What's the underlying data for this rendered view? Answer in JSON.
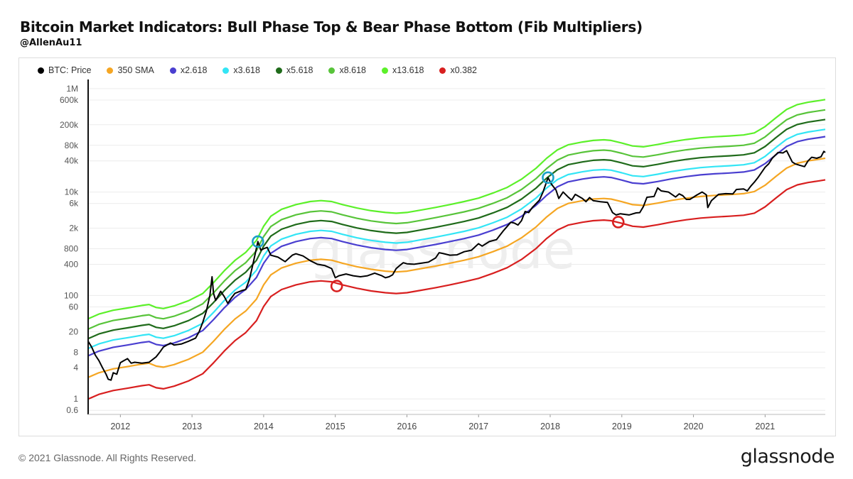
{
  "header": {
    "title": "Bitcoin Market Indicators: Bull Phase Top & Bear Phase Bottom (Fib Multipliers)",
    "subtitle": "@AllenAu11"
  },
  "footer": {
    "copyright": "© 2021 Glassnode. All Rights Reserved.",
    "logo": "glassnode"
  },
  "watermark": "glassnode",
  "colors": {
    "price": "#000000",
    "sma": "#f5a623",
    "x2618": "#4a3fd0",
    "x3618": "#33e5f5",
    "x5618": "#1f6b1a",
    "x8618": "#58c43a",
    "x13618": "#5cf02a",
    "x0382": "#d81f1f",
    "top_marker": "#1aa0c8",
    "bottom_marker": "#d81f1f"
  },
  "chart_data": {
    "type": "line",
    "title": "Bitcoin Market Indicators: Bull Phase Top & Bear Phase Bottom (Fib Multipliers)",
    "y_scale": "log",
    "ylim": [
      0.5,
      1500000
    ],
    "xlim": [
      2011.55,
      2021.84
    ],
    "y_ticks": [
      {
        "value": 0.6,
        "label": "0.6"
      },
      {
        "value": 1,
        "label": "1"
      },
      {
        "value": 4,
        "label": "4"
      },
      {
        "value": 8,
        "label": "8"
      },
      {
        "value": 20,
        "label": "20"
      },
      {
        "value": 60,
        "label": "60"
      },
      {
        "value": 100,
        "label": "100"
      },
      {
        "value": 400,
        "label": "400"
      },
      {
        "value": 800,
        "label": "800"
      },
      {
        "value": 2000,
        "label": "2k"
      },
      {
        "value": 6000,
        "label": "6k"
      },
      {
        "value": 10000,
        "label": "10k"
      },
      {
        "value": 40000,
        "label": "40k"
      },
      {
        "value": 80000,
        "label": "80k"
      },
      {
        "value": 200000,
        "label": "200k"
      },
      {
        "value": 600000,
        "label": "600k"
      },
      {
        "value": 1000000,
        "label": "1M"
      }
    ],
    "x_ticks": [
      {
        "value": 2012,
        "label": "2012"
      },
      {
        "value": 2013,
        "label": "2013"
      },
      {
        "value": 2014,
        "label": "2014"
      },
      {
        "value": 2015,
        "label": "2015"
      },
      {
        "value": 2016,
        "label": "2016"
      },
      {
        "value": 2017,
        "label": "2017"
      },
      {
        "value": 2018,
        "label": "2018"
      },
      {
        "value": 2019,
        "label": "2019"
      },
      {
        "value": 2020,
        "label": "2020"
      },
      {
        "value": 2021,
        "label": "2021"
      }
    ],
    "legend": [
      {
        "key": "price",
        "label": "BTC: Price"
      },
      {
        "key": "sma",
        "label": "350 SMA"
      },
      {
        "key": "x2618",
        "label": "x2.618"
      },
      {
        "key": "x3618",
        "label": "x3.618"
      },
      {
        "key": "x5618",
        "label": "x5.618"
      },
      {
        "key": "x8618",
        "label": "x8.618"
      },
      {
        "key": "x13618",
        "label": "x13.618"
      },
      {
        "key": "x0382",
        "label": "x0.382"
      }
    ],
    "multipliers": {
      "x2618": 2.618,
      "x3618": 3.618,
      "x5618": 5.618,
      "x8618": 8.618,
      "x13618": 13.618,
      "x0382": 0.382
    },
    "sma_series": [
      [
        2011.55,
        2.6
      ],
      [
        2011.7,
        3.2
      ],
      [
        2011.9,
        3.8
      ],
      [
        2012.1,
        4.2
      ],
      [
        2012.3,
        4.7
      ],
      [
        2012.4,
        4.9
      ],
      [
        2012.5,
        4.3
      ],
      [
        2012.6,
        4.1
      ],
      [
        2012.75,
        4.6
      ],
      [
        2012.95,
        5.8
      ],
      [
        2013.15,
        8
      ],
      [
        2013.3,
        13
      ],
      [
        2013.45,
        22
      ],
      [
        2013.6,
        35
      ],
      [
        2013.75,
        50
      ],
      [
        2013.9,
        85
      ],
      [
        2014.0,
        160
      ],
      [
        2014.1,
        250
      ],
      [
        2014.25,
        340
      ],
      [
        2014.45,
        420
      ],
      [
        2014.65,
        480
      ],
      [
        2014.8,
        500
      ],
      [
        2014.95,
        480
      ],
      [
        2015.1,
        420
      ],
      [
        2015.3,
        360
      ],
      [
        2015.5,
        320
      ],
      [
        2015.7,
        295
      ],
      [
        2015.85,
        285
      ],
      [
        2016.0,
        295
      ],
      [
        2016.2,
        330
      ],
      [
        2016.4,
        370
      ],
      [
        2016.6,
        420
      ],
      [
        2016.8,
        480
      ],
      [
        2017.0,
        560
      ],
      [
        2017.2,
        700
      ],
      [
        2017.4,
        900
      ],
      [
        2017.6,
        1300
      ],
      [
        2017.8,
        2100
      ],
      [
        2017.95,
        3300
      ],
      [
        2018.1,
        4800
      ],
      [
        2018.25,
        6000
      ],
      [
        2018.45,
        6800
      ],
      [
        2018.6,
        7300
      ],
      [
        2018.75,
        7500
      ],
      [
        2018.85,
        7300
      ],
      [
        2019.0,
        6500
      ],
      [
        2019.15,
        5700
      ],
      [
        2019.3,
        5500
      ],
      [
        2019.5,
        6100
      ],
      [
        2019.7,
        6900
      ],
      [
        2019.9,
        7600
      ],
      [
        2020.1,
        8200
      ],
      [
        2020.3,
        8600
      ],
      [
        2020.5,
        8900
      ],
      [
        2020.7,
        9300
      ],
      [
        2020.85,
        10200
      ],
      [
        2021.0,
        13500
      ],
      [
        2021.15,
        20000
      ],
      [
        2021.3,
        29000
      ],
      [
        2021.45,
        36000
      ],
      [
        2021.6,
        40000
      ],
      [
        2021.75,
        43000
      ],
      [
        2021.84,
        45000
      ]
    ],
    "price_series": [
      [
        2011.55,
        13
      ],
      [
        2011.6,
        10
      ],
      [
        2011.65,
        7
      ],
      [
        2011.7,
        5.5
      ],
      [
        2011.75,
        4
      ],
      [
        2011.8,
        3
      ],
      [
        2011.83,
        2.4
      ],
      [
        2011.87,
        2.3
      ],
      [
        2011.9,
        3.2
      ],
      [
        2011.95,
        3
      ],
      [
        2012.0,
        5
      ],
      [
        2012.05,
        5.5
      ],
      [
        2012.1,
        6
      ],
      [
        2012.15,
        4.9
      ],
      [
        2012.2,
        5.1
      ],
      [
        2012.3,
        4.9
      ],
      [
        2012.4,
        5.1
      ],
      [
        2012.5,
        6.5
      ],
      [
        2012.55,
        8
      ],
      [
        2012.6,
        10
      ],
      [
        2012.65,
        11
      ],
      [
        2012.7,
        12
      ],
      [
        2012.75,
        11
      ],
      [
        2012.85,
        11.5
      ],
      [
        2012.95,
        13
      ],
      [
        2013.05,
        15
      ],
      [
        2013.1,
        20
      ],
      [
        2013.15,
        30
      ],
      [
        2013.2,
        50
      ],
      [
        2013.25,
        100
      ],
      [
        2013.28,
        230
      ],
      [
        2013.3,
        110
      ],
      [
        2013.33,
        80
      ],
      [
        2013.4,
        120
      ],
      [
        2013.45,
        95
      ],
      [
        2013.5,
        70
      ],
      [
        2013.55,
        90
      ],
      [
        2013.6,
        110
      ],
      [
        2013.7,
        125
      ],
      [
        2013.75,
        130
      ],
      [
        2013.8,
        200
      ],
      [
        2013.85,
        400
      ],
      [
        2013.92,
        1100
      ],
      [
        2013.96,
        750
      ],
      [
        2014.0,
        800
      ],
      [
        2014.05,
        850
      ],
      [
        2014.1,
        600
      ],
      [
        2014.2,
        550
      ],
      [
        2014.3,
        450
      ],
      [
        2014.4,
        600
      ],
      [
        2014.45,
        640
      ],
      [
        2014.55,
        580
      ],
      [
        2014.65,
        470
      ],
      [
        2014.75,
        400
      ],
      [
        2014.85,
        380
      ],
      [
        2014.95,
        330
      ],
      [
        2015.0,
        220
      ],
      [
        2015.05,
        240
      ],
      [
        2015.15,
        260
      ],
      [
        2015.25,
        240
      ],
      [
        2015.35,
        230
      ],
      [
        2015.45,
        240
      ],
      [
        2015.55,
        270
      ],
      [
        2015.65,
        240
      ],
      [
        2015.7,
        220
      ],
      [
        2015.75,
        230
      ],
      [
        2015.8,
        250
      ],
      [
        2015.85,
        330
      ],
      [
        2015.9,
        380
      ],
      [
        2015.95,
        430
      ],
      [
        2016.0,
        410
      ],
      [
        2016.1,
        400
      ],
      [
        2016.2,
        420
      ],
      [
        2016.3,
        440
      ],
      [
        2016.4,
        530
      ],
      [
        2016.45,
        670
      ],
      [
        2016.5,
        650
      ],
      [
        2016.6,
        600
      ],
      [
        2016.7,
        610
      ],
      [
        2016.8,
        700
      ],
      [
        2016.9,
        750
      ],
      [
        2017.0,
        1000
      ],
      [
        2017.05,
        900
      ],
      [
        2017.15,
        1100
      ],
      [
        2017.25,
        1200
      ],
      [
        2017.35,
        1800
      ],
      [
        2017.45,
        2600
      ],
      [
        2017.5,
        2500
      ],
      [
        2017.55,
        2300
      ],
      [
        2017.6,
        2800
      ],
      [
        2017.65,
        4200
      ],
      [
        2017.7,
        4000
      ],
      [
        2017.75,
        5000
      ],
      [
        2017.85,
        7000
      ],
      [
        2017.9,
        10000
      ],
      [
        2017.97,
        19000
      ],
      [
        2018.02,
        14000
      ],
      [
        2018.08,
        11000
      ],
      [
        2018.12,
        7500
      ],
      [
        2018.18,
        10000
      ],
      [
        2018.25,
        8000
      ],
      [
        2018.3,
        7000
      ],
      [
        2018.35,
        9000
      ],
      [
        2018.45,
        7500
      ],
      [
        2018.5,
        6500
      ],
      [
        2018.55,
        7800
      ],
      [
        2018.6,
        6800
      ],
      [
        2018.7,
        6500
      ],
      [
        2018.8,
        6300
      ],
      [
        2018.87,
        4000
      ],
      [
        2018.92,
        3600
      ],
      [
        2018.98,
        3800
      ],
      [
        2019.1,
        3600
      ],
      [
        2019.2,
        3950
      ],
      [
        2019.25,
        4000
      ],
      [
        2019.3,
        5200
      ],
      [
        2019.35,
        7900
      ],
      [
        2019.45,
        8200
      ],
      [
        2019.5,
        12000
      ],
      [
        2019.55,
        10500
      ],
      [
        2019.65,
        10000
      ],
      [
        2019.75,
        8000
      ],
      [
        2019.8,
        9200
      ],
      [
        2019.85,
        8500
      ],
      [
        2019.9,
        7200
      ],
      [
        2019.95,
        7200
      ],
      [
        2020.05,
        8800
      ],
      [
        2020.12,
        10000
      ],
      [
        2020.18,
        8800
      ],
      [
        2020.2,
        5000
      ],
      [
        2020.25,
        6800
      ],
      [
        2020.35,
        9000
      ],
      [
        2020.45,
        9300
      ],
      [
        2020.55,
        9200
      ],
      [
        2020.6,
        11200
      ],
      [
        2020.7,
        11500
      ],
      [
        2020.75,
        10500
      ],
      [
        2020.8,
        13000
      ],
      [
        2020.85,
        15500
      ],
      [
        2020.9,
        19000
      ],
      [
        2021.0,
        30000
      ],
      [
        2021.05,
        35000
      ],
      [
        2021.1,
        45000
      ],
      [
        2021.18,
        58000
      ],
      [
        2021.25,
        57000
      ],
      [
        2021.3,
        63000
      ],
      [
        2021.38,
        38000
      ],
      [
        2021.42,
        35000
      ],
      [
        2021.48,
        33000
      ],
      [
        2021.55,
        31000
      ],
      [
        2021.6,
        40000
      ],
      [
        2021.65,
        47000
      ],
      [
        2021.72,
        45000
      ],
      [
        2021.78,
        48000
      ],
      [
        2021.82,
        61000
      ],
      [
        2021.84,
        58000
      ]
    ],
    "markers": [
      {
        "type": "top",
        "x": 2013.92,
        "y": 1100
      },
      {
        "type": "top",
        "x": 2017.97,
        "y": 19000
      },
      {
        "type": "bottom",
        "x": 2015.02,
        "y": 152
      },
      {
        "type": "bottom",
        "x": 2018.95,
        "y": 2620
      }
    ]
  }
}
